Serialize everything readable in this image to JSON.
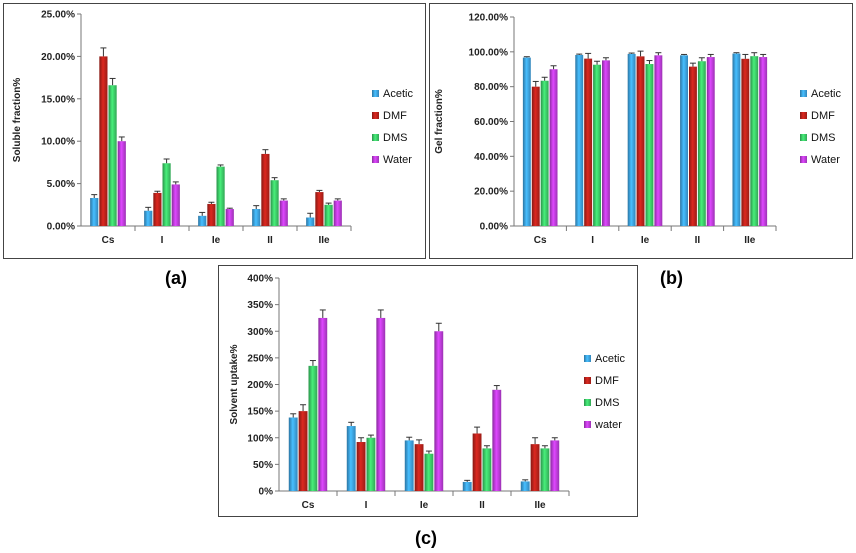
{
  "captions": [
    "(a)",
    "(b)",
    "(c)"
  ],
  "colors": {
    "Acetic": "#3ea6e8",
    "DMF": "#c0231c",
    "DMS": "#3ed06a",
    "Water": "#c23ee0"
  },
  "chart_data": [
    {
      "type": "bar",
      "ylabel": "Soluble fraction%",
      "xlabel": "",
      "categories": [
        "Cs",
        "I",
        "Ie",
        "II",
        "IIe"
      ],
      "ylim": [
        0,
        25
      ],
      "yticks": [
        "0.00%",
        "5.00%",
        "10.00%",
        "15.00%",
        "20.00%",
        "25.00%"
      ],
      "ytick_values": [
        0,
        5,
        10,
        15,
        20,
        25
      ],
      "legend_position": "right",
      "series": [
        {
          "name": "Acetic",
          "values": [
            3.3,
            1.8,
            1.2,
            2.0,
            1.0
          ],
          "errors": [
            0.4,
            0.4,
            0.4,
            0.4,
            0.5
          ]
        },
        {
          "name": "DMF",
          "values": [
            20.0,
            3.9,
            2.6,
            8.5,
            4.0
          ],
          "errors": [
            1.0,
            0.2,
            0.2,
            0.5,
            0.2
          ]
        },
        {
          "name": "DMS",
          "values": [
            16.6,
            7.4,
            7.0,
            5.4,
            2.5
          ],
          "errors": [
            0.8,
            0.5,
            0.2,
            0.3,
            0.2
          ]
        },
        {
          "name": "Water",
          "values": [
            10.0,
            4.9,
            2.0,
            3.0,
            3.0
          ],
          "errors": [
            0.5,
            0.3,
            0.1,
            0.2,
            0.2
          ]
        }
      ]
    },
    {
      "type": "bar",
      "ylabel": "Gel fraction%",
      "xlabel": "",
      "categories": [
        "Cs",
        "I",
        "Ie",
        "II",
        "IIe"
      ],
      "ylim": [
        0,
        120
      ],
      "yticks": [
        "0.00%",
        "20.00%",
        "40.00%",
        "60.00%",
        "80.00%",
        "100.00%",
        "120.00%"
      ],
      "ytick_values": [
        0,
        20,
        40,
        60,
        80,
        100,
        120
      ],
      "legend_position": "right",
      "series": [
        {
          "name": "Acetic",
          "values": [
            96.7,
            98.2,
            98.8,
            98.0,
            99.0
          ],
          "errors": [
            0.5,
            0.5,
            0.5,
            0.5,
            0.5
          ]
        },
        {
          "name": "DMF",
          "values": [
            80.0,
            96.1,
            97.4,
            91.5,
            96.0
          ],
          "errors": [
            3.0,
            3.0,
            3.0,
            2.0,
            2.5
          ]
        },
        {
          "name": "DMS",
          "values": [
            83.4,
            92.6,
            93.0,
            94.6,
            97.5
          ],
          "errors": [
            2.0,
            2.0,
            2.0,
            2.0,
            2.0
          ]
        },
        {
          "name": "Water",
          "values": [
            90.0,
            95.1,
            98.0,
            97.0,
            97.0
          ],
          "errors": [
            2.0,
            1.5,
            1.5,
            1.5,
            1.5
          ]
        }
      ]
    },
    {
      "type": "bar",
      "ylabel": "Solvent uptake%",
      "xlabel": "",
      "categories": [
        "Cs",
        "I",
        "Ie",
        "II",
        "IIe"
      ],
      "ylim": [
        0,
        400
      ],
      "yticks": [
        "0%",
        "50%",
        "100%",
        "150%",
        "200%",
        "250%",
        "300%",
        "350%",
        "400%"
      ],
      "ytick_values": [
        0,
        50,
        100,
        150,
        200,
        250,
        300,
        350,
        400
      ],
      "legend_position": "right",
      "series": [
        {
          "name": "Acetic",
          "values": [
            138,
            122,
            95,
            17,
            18
          ],
          "errors": [
            7,
            7,
            6,
            3,
            3
          ]
        },
        {
          "name": "DMF",
          "values": [
            150,
            92,
            88,
            108,
            88
          ],
          "errors": [
            12,
            8,
            8,
            12,
            12
          ]
        },
        {
          "name": "DMS",
          "values": [
            235,
            100,
            70,
            80,
            80
          ],
          "errors": [
            10,
            5,
            5,
            5,
            5
          ]
        },
        {
          "name": "water",
          "values": [
            325,
            325,
            300,
            190,
            95
          ],
          "errors": [
            15,
            15,
            15,
            8,
            5
          ]
        }
      ]
    }
  ]
}
